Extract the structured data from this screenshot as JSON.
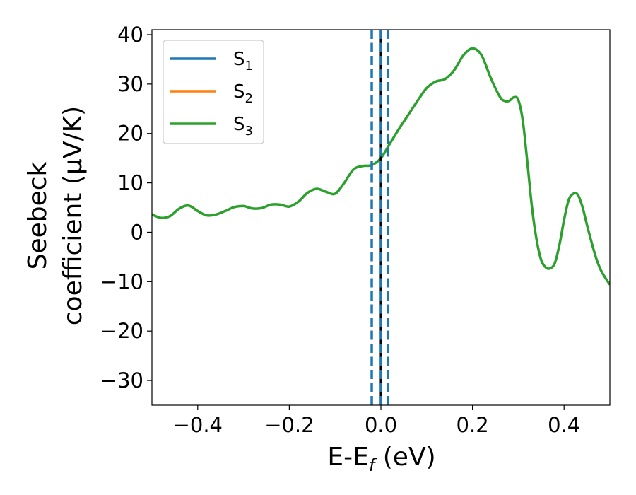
{
  "chart_data": {
    "type": "line",
    "xlabel": "E-E",
    "xlabel_subscript": "f",
    "xlabel_unit": " (eV)",
    "ylabel_line1": "Seebeck",
    "ylabel_line2": "coefficient  (μV/K)",
    "xlim": [
      -0.5,
      0.5
    ],
    "ylim": [
      -35,
      41
    ],
    "xticks": [
      -0.4,
      -0.2,
      0.0,
      0.2,
      0.4
    ],
    "xtick_labels": [
      "−0.4",
      "−0.2",
      "0.0",
      "0.2",
      "0.4"
    ],
    "yticks": [
      -30,
      -20,
      -10,
      0,
      10,
      20,
      30,
      40
    ],
    "ytick_labels": [
      "−30",
      "−20",
      "−10",
      "0",
      "10",
      "20",
      "30",
      "40"
    ],
    "grid": false,
    "legend_position": "top-left",
    "series": [
      {
        "name": "S",
        "subscript": "1",
        "color": "#1f77b4"
      },
      {
        "name": "S",
        "subscript": "2",
        "color": "#ff7f0e"
      },
      {
        "name": "S",
        "subscript": "3",
        "color": "#2ca02c"
      }
    ],
    "curve_color": "#2ca02c",
    "curve_points": [
      [
        -0.5,
        3.6
      ],
      [
        -0.48,
        2.9
      ],
      [
        -0.46,
        3.3
      ],
      [
        -0.44,
        4.8
      ],
      [
        -0.42,
        5.4
      ],
      [
        -0.4,
        4.3
      ],
      [
        -0.38,
        3.4
      ],
      [
        -0.36,
        3.6
      ],
      [
        -0.34,
        4.3
      ],
      [
        -0.32,
        5.1
      ],
      [
        -0.3,
        5.3
      ],
      [
        -0.28,
        4.8
      ],
      [
        -0.26,
        4.9
      ],
      [
        -0.24,
        5.6
      ],
      [
        -0.22,
        5.6
      ],
      [
        -0.2,
        5.2
      ],
      [
        -0.18,
        6.2
      ],
      [
        -0.16,
        8.0
      ],
      [
        -0.14,
        8.8
      ],
      [
        -0.12,
        8.2
      ],
      [
        -0.1,
        7.8
      ],
      [
        -0.08,
        10.0
      ],
      [
        -0.06,
        12.7
      ],
      [
        -0.04,
        13.4
      ],
      [
        -0.02,
        13.6
      ],
      [
        0.0,
        15.0
      ],
      [
        0.02,
        18.0
      ],
      [
        0.04,
        21.0
      ],
      [
        0.06,
        23.8
      ],
      [
        0.08,
        26.6
      ],
      [
        0.1,
        29.2
      ],
      [
        0.12,
        30.5
      ],
      [
        0.14,
        31.0
      ],
      [
        0.16,
        32.8
      ],
      [
        0.18,
        35.8
      ],
      [
        0.2,
        37.2
      ],
      [
        0.22,
        35.8
      ],
      [
        0.24,
        31.2
      ],
      [
        0.26,
        27.4
      ],
      [
        0.27,
        26.6
      ],
      [
        0.28,
        26.6
      ],
      [
        0.29,
        27.3
      ],
      [
        0.3,
        26.8
      ],
      [
        0.31,
        22.5
      ],
      [
        0.32,
        14.0
      ],
      [
        0.33,
        5.0
      ],
      [
        0.34,
        -1.5
      ],
      [
        0.35,
        -5.6
      ],
      [
        0.36,
        -7.1
      ],
      [
        0.37,
        -7.3
      ],
      [
        0.38,
        -6.2
      ],
      [
        0.39,
        -2.5
      ],
      [
        0.4,
        2.5
      ],
      [
        0.41,
        6.5
      ],
      [
        0.42,
        7.8
      ],
      [
        0.43,
        7.6
      ],
      [
        0.44,
        5.2
      ],
      [
        0.45,
        1.5
      ],
      [
        0.46,
        -2.0
      ],
      [
        0.47,
        -5.2
      ],
      [
        0.48,
        -7.6
      ],
      [
        0.49,
        -9.2
      ],
      [
        0.5,
        -10.6
      ]
    ],
    "vertical_lines": [
      {
        "x": 0.0,
        "style": "solid",
        "color": "#000000"
      },
      {
        "x": -0.02,
        "style": "dashed",
        "color": "#1f77b4"
      },
      {
        "x": 0.0,
        "style": "dashed",
        "color": "#1f77b4"
      },
      {
        "x": 0.015,
        "style": "dashed",
        "color": "#1f77b4"
      }
    ]
  }
}
